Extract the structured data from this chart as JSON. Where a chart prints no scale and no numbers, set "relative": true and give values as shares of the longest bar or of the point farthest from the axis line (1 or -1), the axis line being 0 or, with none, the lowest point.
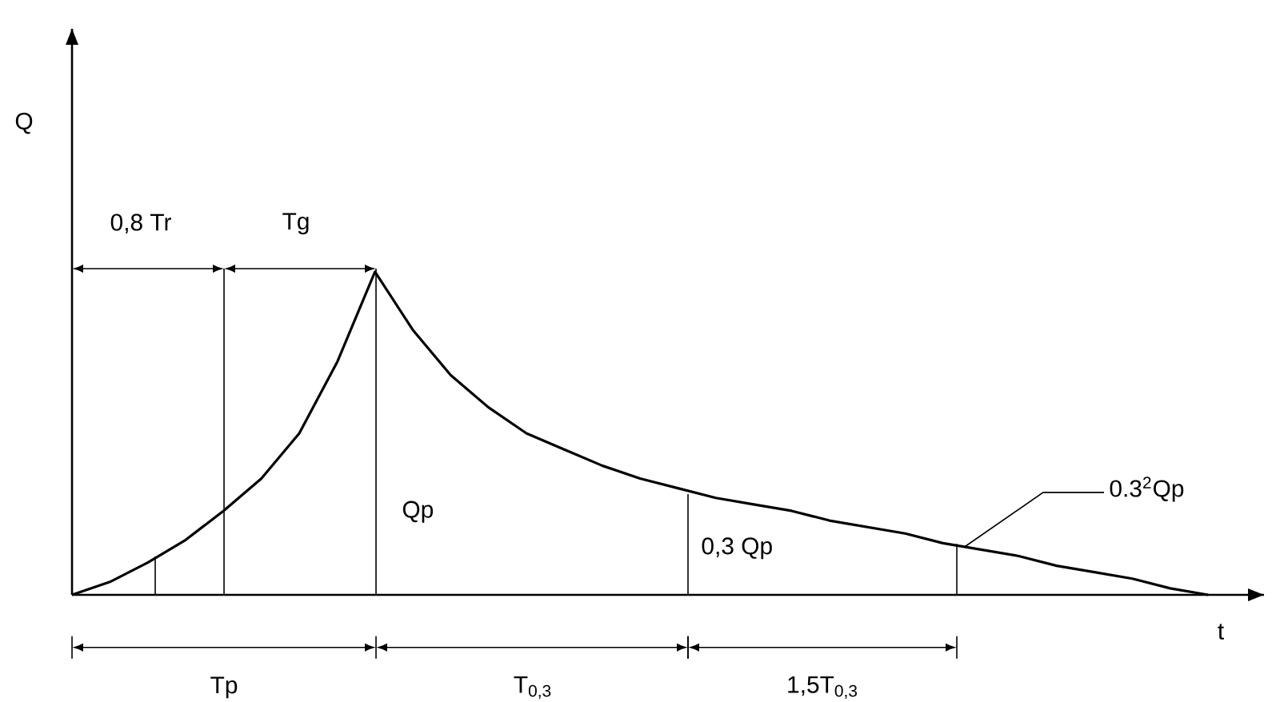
{
  "chart_data": {
    "type": "line",
    "relative": true,
    "xlabel": "t",
    "categories": [
      null,
      null,
      null,
      null,
      null,
      null,
      null,
      null,
      null,
      null,
      null,
      null,
      null,
      null,
      null,
      null,
      null,
      null,
      null,
      null,
      null,
      null,
      null,
      null,
      null,
      null,
      null,
      null,
      null,
      null,
      null
    ],
    "series": [
      {
        "color": "#000000",
        "values": [
          0,
          0.04,
          0.1,
          0.17,
          0.26,
          0.36,
          0.5,
          0.72,
          1,
          0.82,
          0.68,
          0.58,
          0.5,
          0.45,
          0.4,
          0.36,
          0.33,
          0.3,
          0.28,
          0.26,
          0.23,
          0.21,
          0.19,
          0.16,
          0.14,
          0.12,
          0.09,
          0.07,
          0.05,
          0.02,
          0
        ]
      }
    ],
    "annotations": [
      "0,8 Tr",
      "Tg",
      "Qp",
      "0,3 Qp",
      "0.3$^{2}$Qp",
      "Tp",
      "T$_{0,3}$",
      "1,5T$_{0,3}$",
      "Q"
    ]
  }
}
